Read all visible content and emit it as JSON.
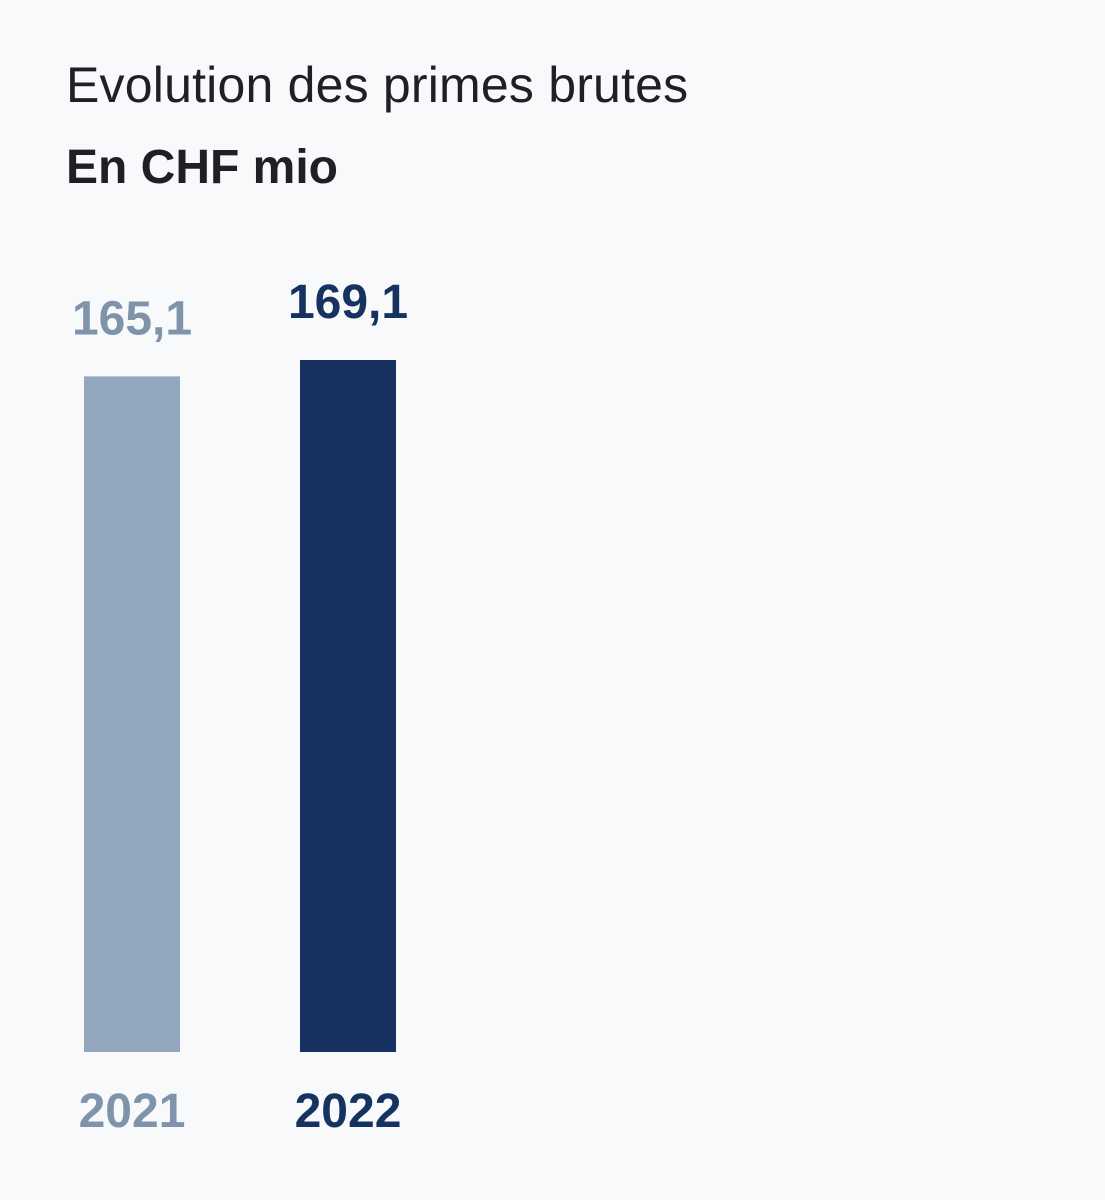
{
  "chart_data": {
    "type": "bar",
    "title": "Evolution des primes brutes",
    "subtitle": "En CHF mio",
    "categories": [
      "2021",
      "2022"
    ],
    "values": [
      165.1,
      169.1
    ],
    "value_labels": [
      "165,1",
      "169,1"
    ],
    "colors": [
      "#93a8bf",
      "#163260"
    ],
    "label_colors": [
      "#7f93ab",
      "#163260"
    ],
    "xlabel": "",
    "ylabel": "",
    "ylim": [
      0,
      169.1
    ],
    "grid": false,
    "legend": "none"
  }
}
